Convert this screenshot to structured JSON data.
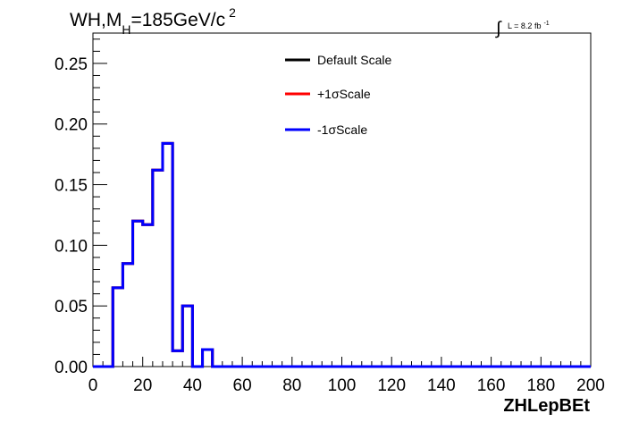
{
  "chart_data": {
    "type": "histogram",
    "title": {
      "prefix": "WH,M",
      "subscript": "H",
      "value": "=185GeV/c",
      "superscript": "2"
    },
    "luminosity": {
      "symbol": "∫",
      "text": "L = 8.2 fb",
      "superscript": "-1"
    },
    "xlabel": "ZHLepBEt",
    "ylabel": "",
    "xlim": [
      0,
      200
    ],
    "ylim": [
      0,
      0.275
    ],
    "x_ticks": [
      0,
      20,
      40,
      60,
      80,
      100,
      120,
      140,
      160,
      180,
      200
    ],
    "x_tick_labels": [
      "0",
      "20",
      "40",
      "60",
      "80",
      "100",
      "120",
      "140",
      "160",
      "180",
      "200"
    ],
    "y_ticks": [
      0,
      0.05,
      0.1,
      0.15,
      0.2,
      0.25
    ],
    "y_tick_labels": [
      "0.00",
      "0.05",
      "0.10",
      "0.15",
      "0.20",
      "0.25"
    ],
    "legend_position": "top-center",
    "grid": false,
    "bin_edges": [
      0,
      4,
      8,
      12,
      16,
      20,
      24,
      28,
      32,
      36,
      40,
      44,
      48,
      52,
      56,
      60,
      64,
      68,
      72,
      76,
      80,
      84,
      88,
      92,
      96,
      100,
      104,
      108,
      112,
      116,
      120,
      124,
      128,
      132,
      136,
      140,
      144,
      148,
      152,
      156,
      160,
      164,
      168,
      172,
      176,
      180,
      184,
      188,
      192,
      196,
      200
    ],
    "series": [
      {
        "name": "Default Scale",
        "color": "#000000",
        "values": [
          0,
          0,
          0.065,
          0.085,
          0.12,
          0.117,
          0.162,
          0.184,
          0.013,
          0.05,
          0,
          0.014,
          0,
          0,
          0,
          0,
          0,
          0,
          0,
          0,
          0,
          0,
          0,
          0,
          0,
          0,
          0,
          0,
          0,
          0,
          0,
          0,
          0,
          0,
          0,
          0,
          0,
          0,
          0,
          0,
          0,
          0,
          0,
          0,
          0,
          0,
          0,
          0,
          0,
          0
        ]
      },
      {
        "name": "+1σScale",
        "color": "#ff0000",
        "values": [
          0,
          0,
          0.065,
          0.085,
          0.12,
          0.117,
          0.162,
          0.184,
          0.013,
          0.05,
          0,
          0.014,
          0,
          0,
          0,
          0,
          0,
          0,
          0,
          0,
          0,
          0,
          0,
          0,
          0,
          0,
          0,
          0,
          0,
          0,
          0,
          0,
          0,
          0,
          0,
          0,
          0,
          0,
          0,
          0,
          0,
          0,
          0,
          0,
          0,
          0,
          0,
          0,
          0,
          0
        ]
      },
      {
        "name": "-1σScale",
        "color": "#0000ff",
        "values": [
          0,
          0,
          0.065,
          0.085,
          0.12,
          0.117,
          0.162,
          0.184,
          0.013,
          0.05,
          0,
          0.014,
          0,
          0,
          0,
          0,
          0,
          0,
          0,
          0,
          0,
          0,
          0,
          0,
          0,
          0,
          0,
          0,
          0,
          0,
          0,
          0,
          0,
          0,
          0,
          0,
          0,
          0,
          0,
          0,
          0,
          0,
          0,
          0,
          0,
          0,
          0,
          0,
          0,
          0
        ]
      }
    ]
  }
}
